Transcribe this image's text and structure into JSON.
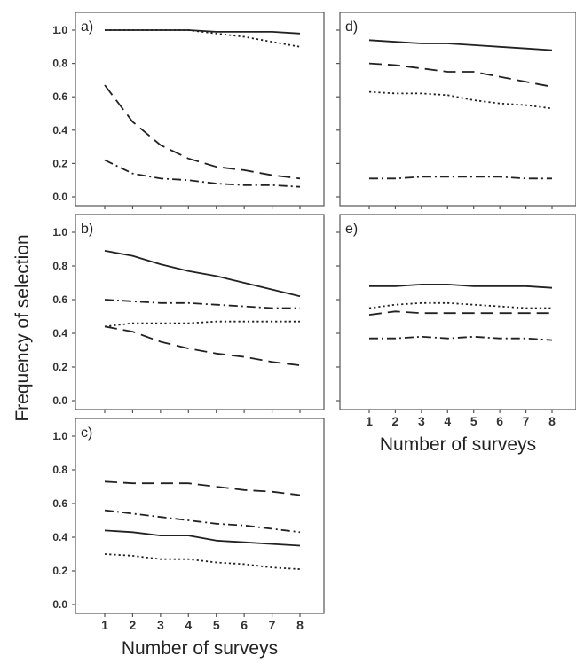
{
  "figure": {
    "ylabel": "Frequency of selection",
    "xlabel": "Number of surveys",
    "line_color": "#222222"
  },
  "chart_data": [
    {
      "type": "line",
      "panel": "a)",
      "x": [
        1,
        2,
        3,
        4,
        5,
        6,
        7,
        8
      ],
      "ylim": [
        0,
        1
      ],
      "yticks": [
        "0.0",
        "0.2",
        "0.4",
        "0.6",
        "0.8",
        "1.0"
      ],
      "xticks": [],
      "xlabel": "",
      "series": [
        {
          "style": "solid",
          "values": [
            1.0,
            1.0,
            1.0,
            1.0,
            0.99,
            0.99,
            0.99,
            0.98
          ]
        },
        {
          "style": "dotted",
          "values": [
            1.0,
            1.0,
            1.0,
            1.0,
            0.98,
            0.96,
            0.93,
            0.9
          ]
        },
        {
          "style": "dashed",
          "values": [
            0.67,
            0.45,
            0.31,
            0.23,
            0.18,
            0.16,
            0.13,
            0.11
          ]
        },
        {
          "style": "dash-dot",
          "values": [
            0.22,
            0.14,
            0.11,
            0.1,
            0.08,
            0.07,
            0.07,
            0.06
          ]
        }
      ]
    },
    {
      "type": "line",
      "panel": "b)",
      "x": [
        1,
        2,
        3,
        4,
        5,
        6,
        7,
        8
      ],
      "ylim": [
        0,
        1
      ],
      "yticks": [
        "0.0",
        "0.2",
        "0.4",
        "0.6",
        "0.8",
        "1.0"
      ],
      "xticks": [],
      "xlabel": "",
      "series": [
        {
          "style": "solid",
          "values": [
            0.89,
            0.86,
            0.81,
            0.77,
            0.74,
            0.7,
            0.66,
            0.62
          ]
        },
        {
          "style": "dash-dot",
          "values": [
            0.6,
            0.59,
            0.58,
            0.58,
            0.57,
            0.56,
            0.55,
            0.55
          ]
        },
        {
          "style": "dotted",
          "values": [
            0.44,
            0.46,
            0.46,
            0.46,
            0.47,
            0.47,
            0.47,
            0.47
          ]
        },
        {
          "style": "dashed",
          "values": [
            0.44,
            0.41,
            0.35,
            0.31,
            0.28,
            0.26,
            0.23,
            0.21
          ]
        }
      ]
    },
    {
      "type": "line",
      "panel": "c)",
      "x": [
        1,
        2,
        3,
        4,
        5,
        6,
        7,
        8
      ],
      "ylim": [
        0,
        1
      ],
      "yticks": [
        "0.0",
        "0.2",
        "0.4",
        "0.6",
        "0.8",
        "1.0"
      ],
      "xticks": [
        "1",
        "2",
        "3",
        "4",
        "5",
        "6",
        "7",
        "8"
      ],
      "xlabel": "Number of surveys",
      "series": [
        {
          "style": "dashed",
          "values": [
            0.73,
            0.72,
            0.72,
            0.72,
            0.7,
            0.68,
            0.67,
            0.65
          ]
        },
        {
          "style": "dash-dot",
          "values": [
            0.56,
            0.54,
            0.52,
            0.5,
            0.48,
            0.47,
            0.45,
            0.43
          ]
        },
        {
          "style": "solid",
          "values": [
            0.44,
            0.43,
            0.41,
            0.41,
            0.38,
            0.37,
            0.36,
            0.35
          ]
        },
        {
          "style": "dotted",
          "values": [
            0.3,
            0.29,
            0.27,
            0.27,
            0.25,
            0.24,
            0.22,
            0.21
          ]
        }
      ]
    },
    {
      "type": "line",
      "panel": "d)",
      "x": [
        1,
        2,
        3,
        4,
        5,
        6,
        7,
        8
      ],
      "ylim": [
        0,
        1
      ],
      "yticks": [],
      "xticks": [],
      "xlabel": "",
      "series": [
        {
          "style": "solid",
          "values": [
            0.94,
            0.93,
            0.92,
            0.92,
            0.91,
            0.9,
            0.89,
            0.88
          ]
        },
        {
          "style": "dashed",
          "values": [
            0.8,
            0.79,
            0.77,
            0.75,
            0.75,
            0.72,
            0.69,
            0.66
          ]
        },
        {
          "style": "dotted",
          "values": [
            0.63,
            0.62,
            0.62,
            0.61,
            0.58,
            0.56,
            0.55,
            0.53
          ]
        },
        {
          "style": "dash-dot",
          "values": [
            0.11,
            0.11,
            0.12,
            0.12,
            0.12,
            0.12,
            0.11,
            0.11
          ]
        }
      ]
    },
    {
      "type": "line",
      "panel": "e)",
      "x": [
        1,
        2,
        3,
        4,
        5,
        6,
        7,
        8
      ],
      "ylim": [
        0,
        1
      ],
      "yticks": [],
      "xticks": [
        "1",
        "2",
        "3",
        "4",
        "5",
        "6",
        "7",
        "8"
      ],
      "xlabel": "Number of surveys",
      "series": [
        {
          "style": "solid",
          "values": [
            0.68,
            0.68,
            0.69,
            0.69,
            0.68,
            0.68,
            0.68,
            0.67
          ]
        },
        {
          "style": "dotted",
          "values": [
            0.55,
            0.57,
            0.58,
            0.58,
            0.57,
            0.56,
            0.55,
            0.55
          ]
        },
        {
          "style": "dashed",
          "values": [
            0.51,
            0.53,
            0.52,
            0.52,
            0.52,
            0.52,
            0.52,
            0.52
          ]
        },
        {
          "style": "dash-dot",
          "values": [
            0.37,
            0.37,
            0.38,
            0.37,
            0.38,
            0.37,
            0.37,
            0.36
          ]
        }
      ]
    }
  ]
}
